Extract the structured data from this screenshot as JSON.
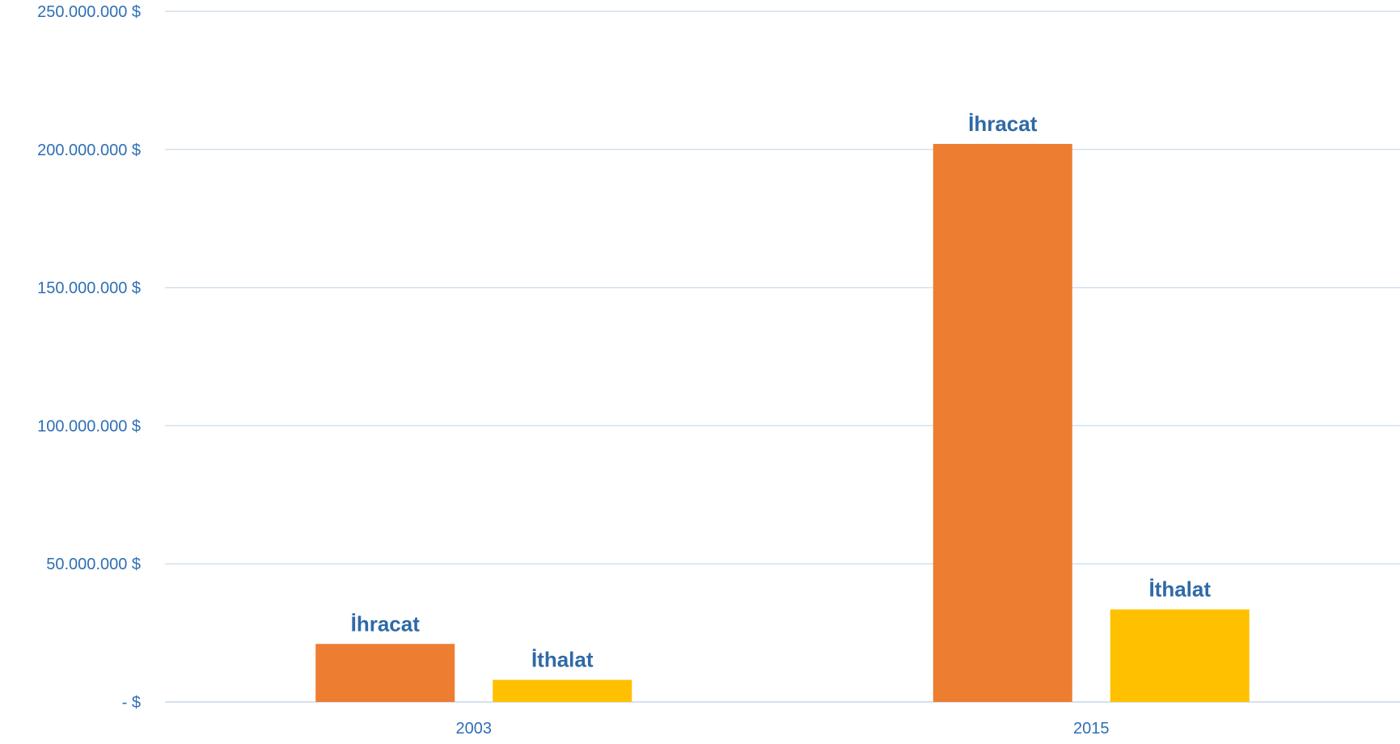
{
  "chart_data": {
    "type": "bar",
    "categories": [
      "2003",
      "2015"
    ],
    "series": [
      {
        "name": "İhracat",
        "color": "#ed7d31",
        "values": [
          21000000,
          202000000
        ],
        "labels": [
          "İhracat",
          "İhracat"
        ]
      },
      {
        "name": "İthalat",
        "color": "#ffc000",
        "values": [
          8000000,
          33500000
        ],
        "labels": [
          "İthalat",
          "İthalat"
        ]
      }
    ],
    "ylim": [
      0,
      250000000
    ],
    "yticks": [
      0,
      50000000,
      100000000,
      150000000,
      200000000,
      250000000
    ],
    "ytick_labels": [
      "-  $",
      "50.000.000  $",
      "100.000.000  $",
      "150.000.000  $",
      "200.000.000  $",
      "250.000.000  $"
    ],
    "grid": true,
    "legend": "none",
    "title": "",
    "xlabel": "",
    "ylabel": ""
  }
}
